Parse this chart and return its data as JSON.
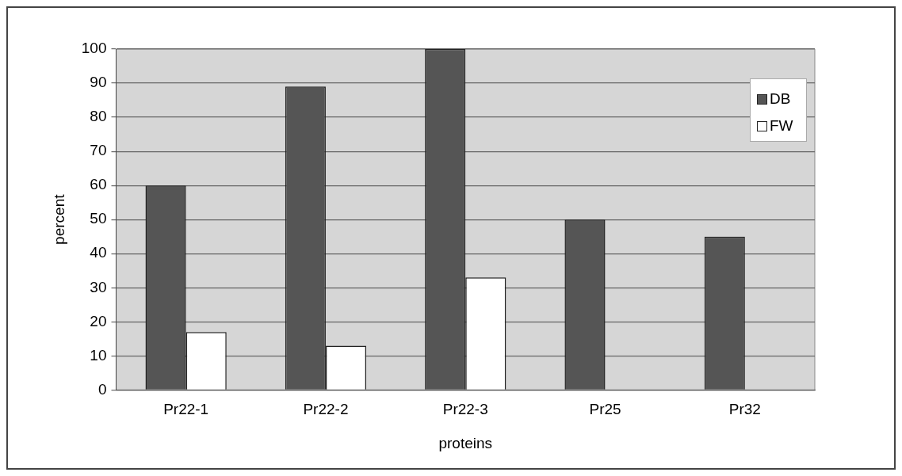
{
  "chart_data": {
    "type": "bar",
    "xlabel": "proteins",
    "ylabel": "percent",
    "categories": [
      "Pr22-1",
      "Pr22-2",
      "Pr22-3",
      "Pr25",
      "Pr32"
    ],
    "series": [
      {
        "name": "DB",
        "color": "#555555",
        "values": [
          60,
          89,
          100,
          50,
          45
        ]
      },
      {
        "name": "FW",
        "color": "#ffffff",
        "values": [
          17,
          13,
          33,
          null,
          null
        ]
      }
    ],
    "ylim": [
      0,
      100
    ],
    "yticks": [
      0,
      10,
      20,
      30,
      40,
      50,
      60,
      70,
      80,
      90,
      100
    ],
    "grid": "y",
    "legend": "top right"
  }
}
